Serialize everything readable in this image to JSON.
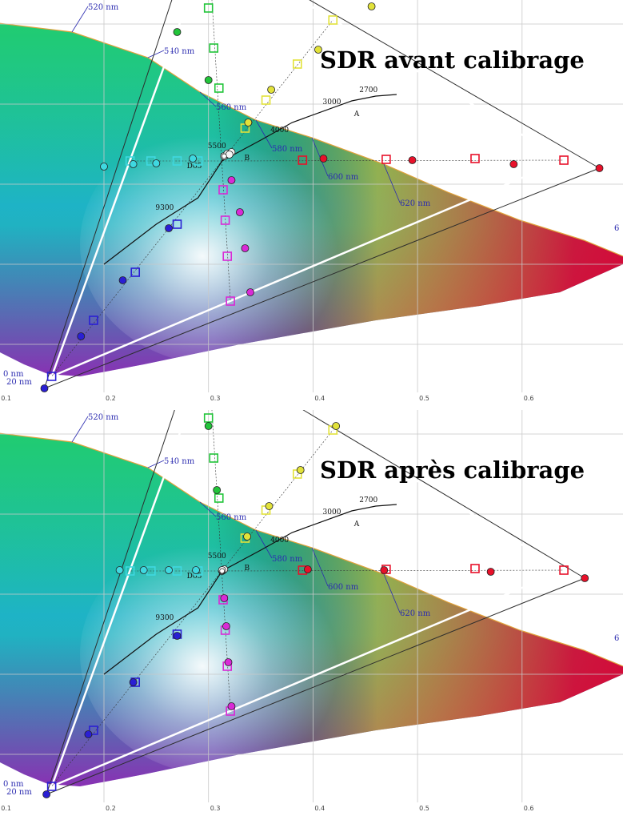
{
  "locus_labels": [
    "520 nm",
    "540 nm",
    "560 nm",
    "580 nm",
    "600 nm",
    "620 nm",
    "6",
    "0 nm",
    "20 nm"
  ],
  "x_ticks": [
    "0.1",
    "0.2",
    "0.3",
    "0.4",
    "0.5",
    "0.6"
  ],
  "cct_labels": [
    "9300",
    "D65",
    "5500",
    "B",
    "4000",
    "3000",
    "2700",
    "A"
  ],
  "colors": {
    "grid": "#c8c8c8",
    "target_triangle": "#ffffff",
    "measured_triangle": "#2d2d2d",
    "locus_label": "#2b2bb0"
  },
  "chart_data": [
    {
      "type": "scatter",
      "title": "SDR avant calibrage",
      "xlim": [
        0.1,
        0.69
      ],
      "ylim": [
        0.0,
        0.84
      ],
      "grid": true,
      "target_gamut": {
        "red": [
          0.64,
          0.33
        ],
        "green": [
          0.3,
          0.6
        ],
        "blue": [
          0.15,
          0.06
        ],
        "white": [
          0.3127,
          0.329
        ]
      },
      "measured_gamut": {
        "red": [
          0.674,
          0.32
        ],
        "green": [
          0.286,
          0.614
        ],
        "blue": [
          0.143,
          0.045
        ],
        "white": [
          0.315,
          0.335
        ]
      },
      "targets": {
        "red": [
          [
            0.64,
            0.33
          ],
          [
            0.555,
            0.332
          ],
          [
            0.47,
            0.331
          ],
          [
            0.39,
            0.33
          ]
        ],
        "green": [
          [
            0.3,
            0.6
          ],
          [
            0.3,
            0.52
          ],
          [
            0.305,
            0.47
          ],
          [
            0.31,
            0.42
          ]
        ],
        "blue": [
          [
            0.15,
            0.06
          ],
          [
            0.19,
            0.13
          ],
          [
            0.23,
            0.19
          ],
          [
            0.27,
            0.25
          ]
        ],
        "cyan": [
          [
            0.225,
            0.329
          ],
          [
            0.245,
            0.329
          ],
          [
            0.27,
            0.329
          ],
          [
            0.29,
            0.329
          ]
        ],
        "magenta": [
          [
            0.321,
            0.154
          ],
          [
            0.318,
            0.21
          ],
          [
            0.316,
            0.255
          ],
          [
            0.314,
            0.293
          ]
        ],
        "yellow": [
          [
            0.419,
            0.505
          ],
          [
            0.385,
            0.45
          ],
          [
            0.355,
            0.405
          ],
          [
            0.335,
            0.37
          ]
        ]
      },
      "measured": {
        "red": [
          [
            0.674,
            0.32
          ],
          [
            0.592,
            0.325
          ],
          [
            0.495,
            0.33
          ],
          [
            0.41,
            0.332
          ]
        ],
        "green": [
          [
            0.286,
            0.614
          ],
          [
            0.275,
            0.56
          ],
          [
            0.27,
            0.49
          ],
          [
            0.3,
            0.43
          ]
        ],
        "blue": [
          [
            0.143,
            0.045
          ],
          [
            0.178,
            0.11
          ],
          [
            0.218,
            0.18
          ],
          [
            0.262,
            0.245
          ]
        ],
        "cyan": [
          [
            0.2,
            0.322
          ],
          [
            0.228,
            0.325
          ],
          [
            0.25,
            0.326
          ],
          [
            0.285,
            0.332
          ]
        ],
        "magenta": [
          [
            0.34,
            0.165
          ],
          [
            0.335,
            0.22
          ],
          [
            0.33,
            0.265
          ],
          [
            0.322,
            0.305
          ]
        ],
        "yellow": [
          [
            0.456,
            0.522
          ],
          [
            0.405,
            0.468
          ],
          [
            0.36,
            0.418
          ],
          [
            0.338,
            0.377
          ]
        ],
        "white": [
          [
            0.315,
            0.335
          ],
          [
            0.318,
            0.338
          ],
          [
            0.322,
            0.34
          ],
          [
            0.32,
            0.337
          ]
        ]
      }
    },
    {
      "type": "scatter",
      "title": "SDR après calibrage",
      "xlim": [
        0.1,
        0.69
      ],
      "ylim": [
        0.0,
        0.84
      ],
      "grid": true,
      "target_gamut": {
        "red": [
          0.64,
          0.33
        ],
        "green": [
          0.3,
          0.6
        ],
        "blue": [
          0.15,
          0.06
        ],
        "white": [
          0.3127,
          0.329
        ]
      },
      "measured_gamut": {
        "red": [
          0.66,
          0.32
        ],
        "green": [
          0.288,
          0.61
        ],
        "blue": [
          0.145,
          0.05
        ],
        "white": [
          0.313,
          0.329
        ]
      },
      "targets": {
        "red": [
          [
            0.64,
            0.33
          ],
          [
            0.555,
            0.332
          ],
          [
            0.47,
            0.331
          ],
          [
            0.39,
            0.33
          ]
        ],
        "green": [
          [
            0.3,
            0.6
          ],
          [
            0.3,
            0.52
          ],
          [
            0.305,
            0.47
          ],
          [
            0.31,
            0.42
          ]
        ],
        "blue": [
          [
            0.15,
            0.06
          ],
          [
            0.19,
            0.13
          ],
          [
            0.23,
            0.19
          ],
          [
            0.27,
            0.25
          ]
        ],
        "cyan": [
          [
            0.225,
            0.329
          ],
          [
            0.245,
            0.329
          ],
          [
            0.27,
            0.329
          ],
          [
            0.29,
            0.329
          ]
        ],
        "magenta": [
          [
            0.321,
            0.154
          ],
          [
            0.318,
            0.21
          ],
          [
            0.316,
            0.255
          ],
          [
            0.314,
            0.293
          ]
        ],
        "yellow": [
          [
            0.419,
            0.505
          ],
          [
            0.385,
            0.45
          ],
          [
            0.355,
            0.405
          ],
          [
            0.335,
            0.37
          ]
        ]
      },
      "measured": {
        "red": [
          [
            0.66,
            0.32
          ],
          [
            0.57,
            0.328
          ],
          [
            0.468,
            0.33
          ],
          [
            0.395,
            0.331
          ]
        ],
        "green": [
          [
            0.288,
            0.61
          ],
          [
            0.29,
            0.56
          ],
          [
            0.3,
            0.51
          ],
          [
            0.308,
            0.43
          ]
        ],
        "blue": [
          [
            0.145,
            0.05
          ],
          [
            0.185,
            0.125
          ],
          [
            0.228,
            0.19
          ],
          [
            0.27,
            0.248
          ]
        ],
        "cyan": [
          [
            0.215,
            0.33
          ],
          [
            0.238,
            0.33
          ],
          [
            0.262,
            0.33
          ],
          [
            0.288,
            0.33
          ]
        ],
        "magenta": [
          [
            0.322,
            0.16
          ],
          [
            0.319,
            0.215
          ],
          [
            0.317,
            0.26
          ],
          [
            0.315,
            0.295
          ]
        ],
        "yellow": [
          [
            0.422,
            0.51
          ],
          [
            0.388,
            0.455
          ],
          [
            0.358,
            0.41
          ],
          [
            0.337,
            0.372
          ]
        ],
        "white": [
          [
            0.313,
            0.329
          ],
          [
            0.314,
            0.33
          ],
          [
            0.315,
            0.331
          ],
          [
            0.313,
            0.33
          ]
        ]
      }
    }
  ]
}
